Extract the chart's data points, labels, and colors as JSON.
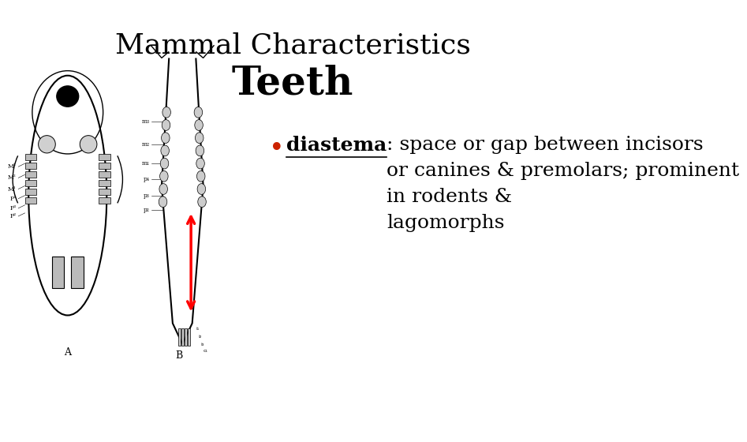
{
  "title_line1": "Mammal Characteristics",
  "title_line2": "Teeth",
  "bullet_term": "diastema",
  "bullet_rest": ": space or gap between incisors\nor canines & premolars; prominent\nin rodents &\nlagomorphs",
  "bullet_color": "#cc2200",
  "background_color": "#ffffff",
  "title1_fontsize": 26,
  "title2_fontsize": 36,
  "bullet_fontsize": 18,
  "skull_labels_A": [
    [
      "M³",
      -2.1,
      0.9
    ],
    [
      "M²",
      -2.1,
      0.55
    ],
    [
      "M¹",
      -2.1,
      0.2
    ],
    [
      "P⁴",
      -2.1,
      -0.1
    ],
    [
      "P³",
      -2.1,
      -0.4
    ],
    [
      "P²",
      -2.1,
      -0.65
    ]
  ],
  "skull_labels_B": [
    [
      "m₃",
      -1.35,
      7.5
    ],
    [
      "m₂",
      -1.35,
      6.8
    ],
    [
      "m₁",
      -1.35,
      6.2
    ],
    [
      "p₄",
      -1.35,
      5.7
    ],
    [
      "p₃",
      -1.35,
      5.2
    ],
    [
      "p₂",
      -1.35,
      4.75
    ]
  ]
}
